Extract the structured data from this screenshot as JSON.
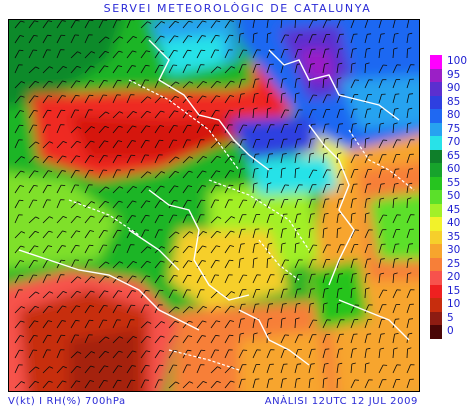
{
  "header": {
    "title": "SERVEI METEOROLÒGIC DE CATALUNYA"
  },
  "footer": {
    "variables": "V(kt) I RH(%) 700hPa",
    "analysis": "ANÀLISI 12UTC 12 JUL 2009"
  },
  "legend": {
    "items": [
      {
        "label": "100",
        "color": "#ff00ff"
      },
      {
        "label": "95",
        "color": "#9b1fc6"
      },
      {
        "label": "90",
        "color": "#5b2fcf"
      },
      {
        "label": "85",
        "color": "#2e3fe0"
      },
      {
        "label": "80",
        "color": "#1f68f2"
      },
      {
        "label": "75",
        "color": "#27a3f0"
      },
      {
        "label": "70",
        "color": "#28e2e8"
      },
      {
        "label": "65",
        "color": "#0f7f2a"
      },
      {
        "label": "60",
        "color": "#17a32c"
      },
      {
        "label": "55",
        "color": "#26c41f"
      },
      {
        "label": "50",
        "color": "#5be02a"
      },
      {
        "label": "45",
        "color": "#a2f028"
      },
      {
        "label": "40",
        "color": "#f2f22a"
      },
      {
        "label": "35",
        "color": "#f6cf2b"
      },
      {
        "label": "30",
        "color": "#f7a52d"
      },
      {
        "label": "25",
        "color": "#f77f38"
      },
      {
        "label": "20",
        "color": "#f7524c"
      },
      {
        "label": "15",
        "color": "#ef2020"
      },
      {
        "label": "10",
        "color": "#c72d0d"
      },
      {
        "label": "5",
        "color": "#8d1c12"
      },
      {
        "label": "0",
        "color": "#4a0606"
      }
    ]
  }
}
